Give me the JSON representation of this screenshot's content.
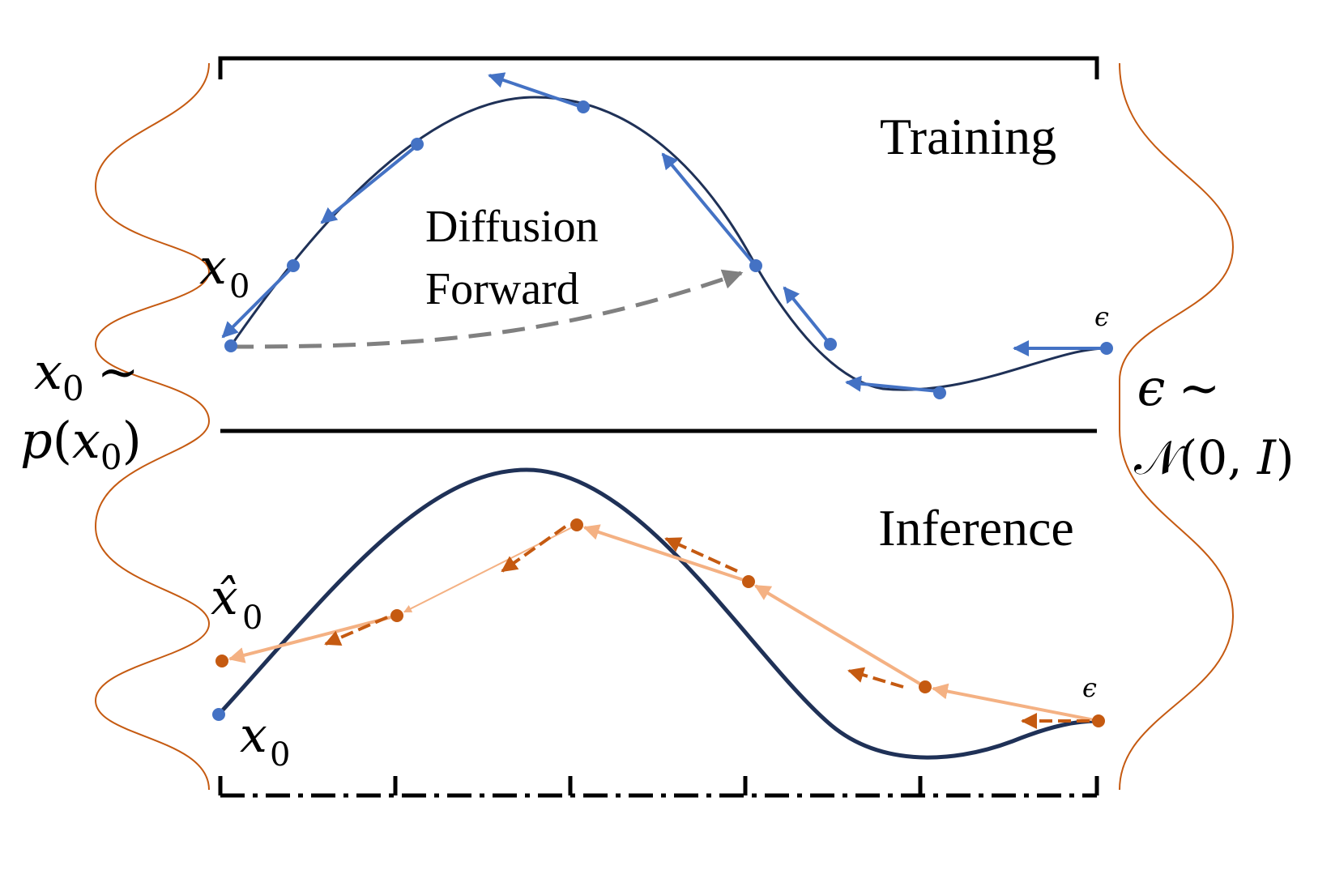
{
  "panels": {
    "training": {
      "title": "Training"
    },
    "inference": {
      "title": "Inference"
    }
  },
  "annotation": {
    "line1": "Diffusion",
    "line2": "Forward"
  },
  "labels": {
    "x0": "x",
    "x0_sub": "0",
    "x0_hat": "x̂",
    "x0_hat_sub": "0",
    "epsilon": "ϵ"
  },
  "distributions": {
    "left": {
      "line1_var": "x",
      "line1_sub": "0",
      "line1_tilde": "~",
      "line2_fn": "p",
      "line2_open": "(",
      "line2_var": "x",
      "line2_sub": "0",
      "line2_close": ")"
    },
    "right": {
      "line1_var": "ϵ",
      "line1_tilde": "~",
      "line2_fn": "𝒩",
      "line2_args": "(0, ",
      "line2_I": "I",
      "line2_close": ")"
    }
  },
  "colors": {
    "curve": "#1f3157",
    "training_points": "#4472c4",
    "inference_points": "#c55a11",
    "inference_arrows": "#f4b183",
    "forward_arrow": "#808080",
    "gaussian": "#c55a11",
    "frame": "#000000"
  },
  "icons": {
    "training_point": "filled-circle",
    "inference_point": "filled-circle",
    "velocity_arrow": "arrow-left-icon"
  }
}
